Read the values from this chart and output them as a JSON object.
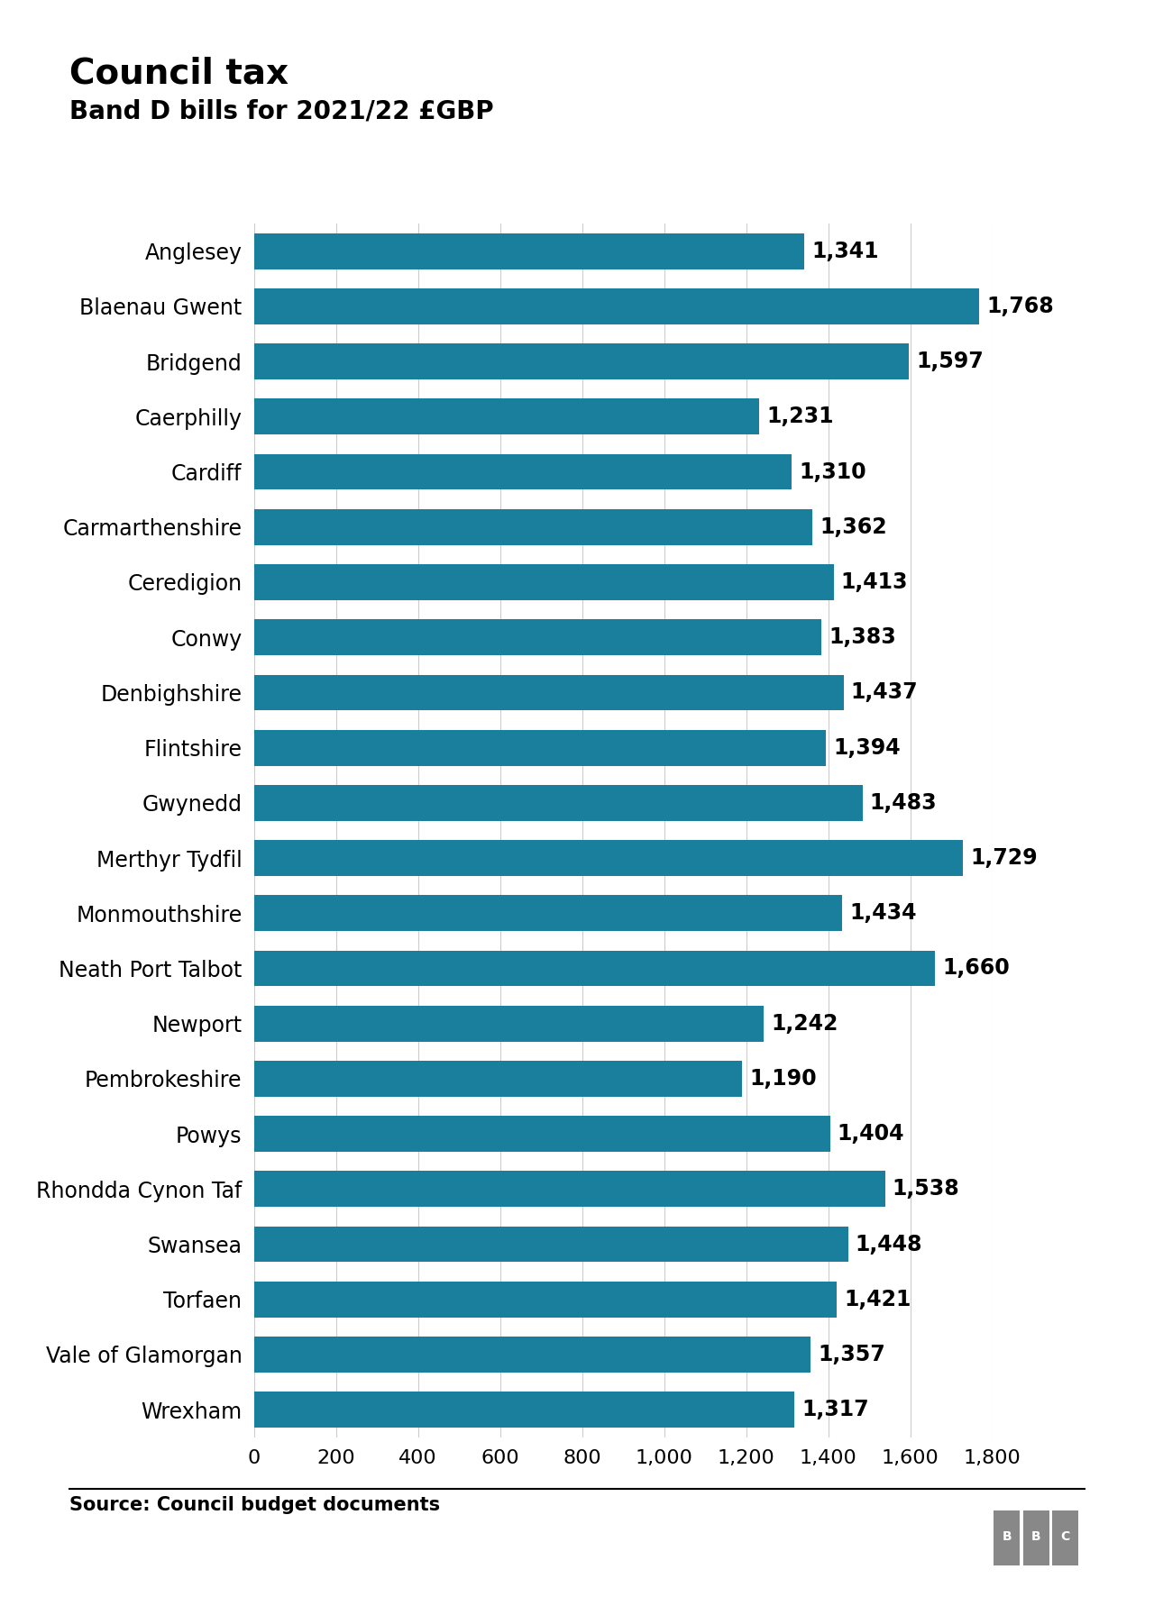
{
  "title": "Council tax",
  "subtitle": "Band D bills for 2021/22 £GBP",
  "source": "Source: Council budget documents",
  "bar_color": "#1a7f9c",
  "background_color": "#ffffff",
  "categories": [
    "Anglesey",
    "Blaenau Gwent",
    "Bridgend",
    "Caerphilly",
    "Cardiff",
    "Carmarthenshire",
    "Ceredigion",
    "Conwy",
    "Denbighshire",
    "Flintshire",
    "Gwynedd",
    "Merthyr Tydfil",
    "Monmouthshire",
    "Neath Port Talbot",
    "Newport",
    "Pembrokeshire",
    "Powys",
    "Rhondda Cynon Taf",
    "Swansea",
    "Torfaen",
    "Vale of Glamorgan",
    "Wrexham"
  ],
  "values": [
    1341,
    1768,
    1597,
    1231,
    1310,
    1362,
    1413,
    1383,
    1437,
    1394,
    1483,
    1729,
    1434,
    1660,
    1242,
    1190,
    1404,
    1538,
    1448,
    1421,
    1357,
    1317
  ],
  "xlim": [
    0,
    1800
  ],
  "xticks": [
    0,
    200,
    400,
    600,
    800,
    1000,
    1200,
    1400,
    1600,
    1800
  ],
  "title_fontsize": 28,
  "subtitle_fontsize": 20,
  "label_fontsize": 17,
  "tick_fontsize": 16,
  "value_fontsize": 17,
  "source_fontsize": 15
}
